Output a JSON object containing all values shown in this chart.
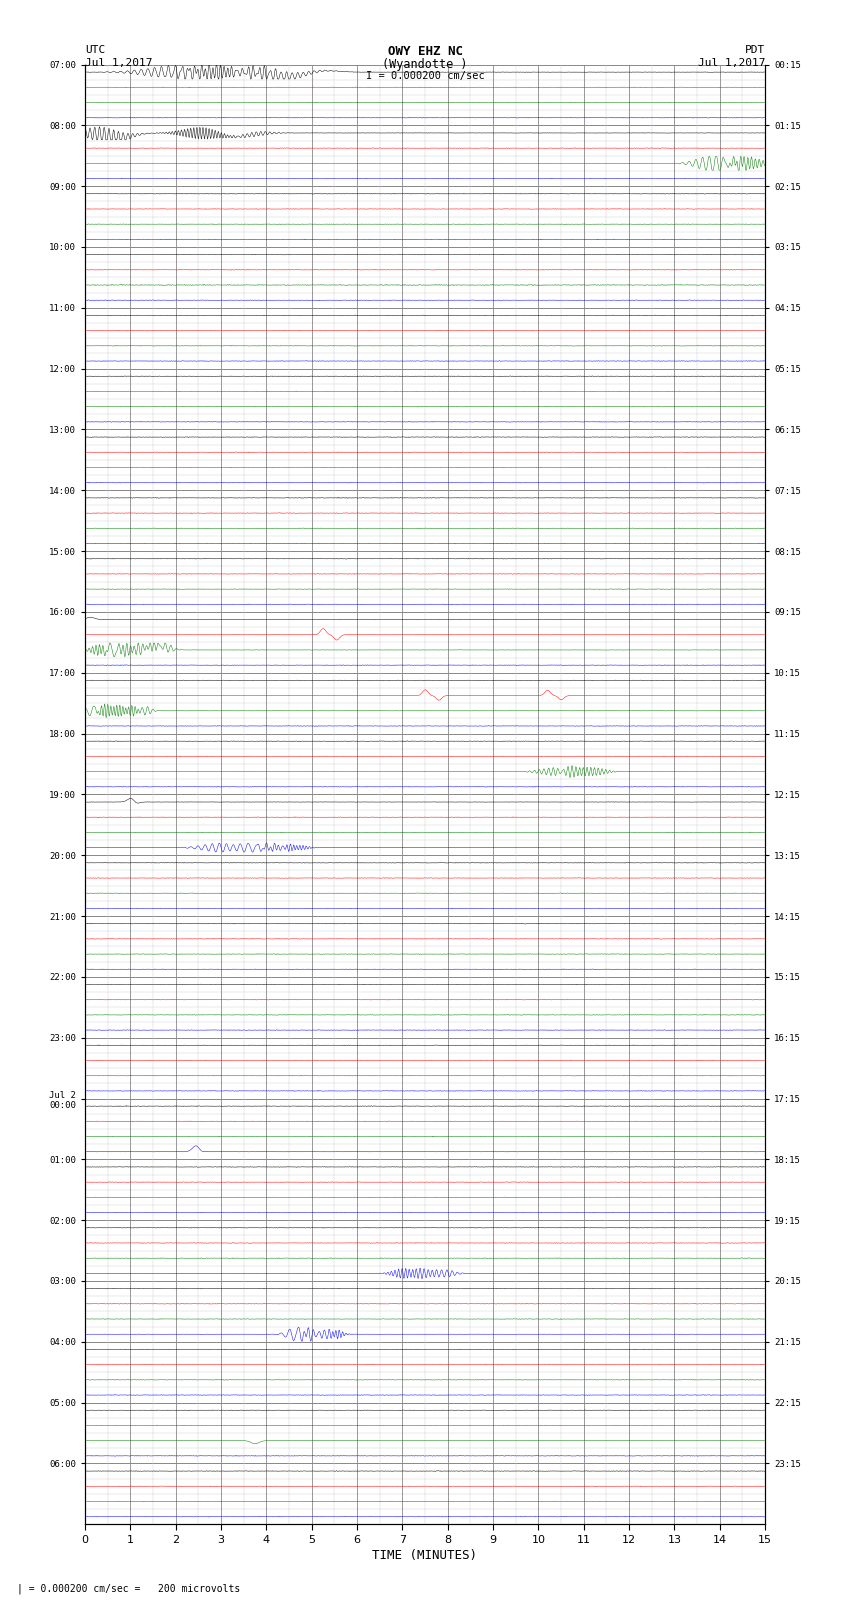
{
  "title_line1": "OWY EHZ NC",
  "title_line2": "(Wyandotte )",
  "scale_label": "I = 0.000200 cm/sec",
  "bottom_label": "| = 0.000200 cm/sec =   200 microvolts",
  "xlabel": "TIME (MINUTES)",
  "left_header_line1": "UTC",
  "left_header_line2": "Jul 1,2017",
  "right_header_line1": "PDT",
  "right_header_line2": "Jul 1,2017",
  "left_yticks": [
    "07:00",
    "08:00",
    "09:00",
    "10:00",
    "11:00",
    "12:00",
    "13:00",
    "14:00",
    "15:00",
    "16:00",
    "17:00",
    "18:00",
    "19:00",
    "20:00",
    "21:00",
    "22:00",
    "23:00",
    "Jul 2\n00:00",
    "01:00",
    "02:00",
    "03:00",
    "04:00",
    "05:00",
    "06:00"
  ],
  "right_yticks": [
    "00:15",
    "01:15",
    "02:15",
    "03:15",
    "04:15",
    "05:15",
    "06:15",
    "07:15",
    "08:15",
    "09:15",
    "10:15",
    "11:15",
    "12:15",
    "13:15",
    "14:15",
    "15:15",
    "16:15",
    "17:15",
    "18:15",
    "19:15",
    "20:15",
    "21:15",
    "22:15",
    "23:15"
  ],
  "num_rows": 24,
  "subtraces_per_row": 4,
  "fig_width": 8.5,
  "fig_height": 16.13,
  "bg_color": "#ffffff",
  "colors": [
    "#000000",
    "#ff0000",
    "#008000",
    "#0000ff"
  ],
  "grid_major_color": "#888888",
  "grid_minor_color": "#cccccc"
}
